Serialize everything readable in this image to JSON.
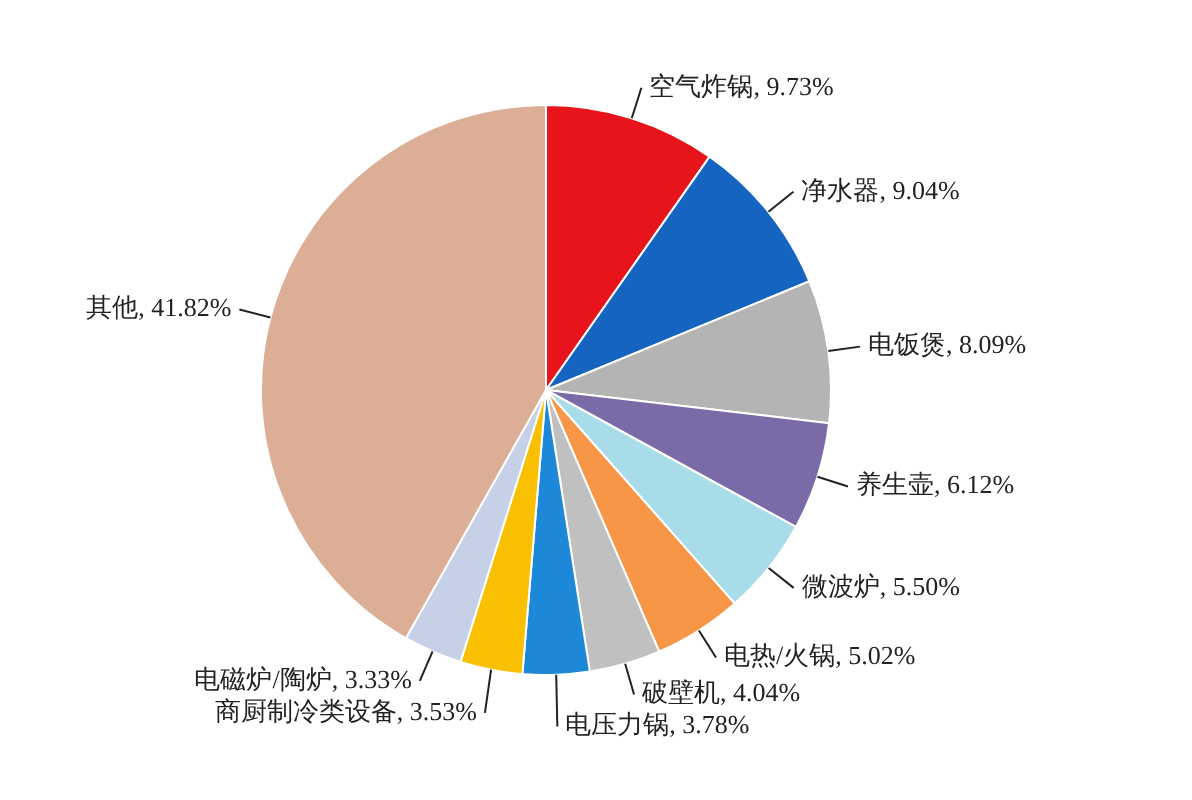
{
  "chart_data": {
    "type": "pie",
    "categories": [
      "空气炸锅",
      "净水器",
      "电饭煲",
      "养生壶",
      "微波炉",
      "电热/火锅",
      "破壁机",
      "电压力锅",
      "商厨制冷类设备",
      "电磁炉/陶炉",
      "其他"
    ],
    "values": [
      9.73,
      9.04,
      8.09,
      6.12,
      5.5,
      5.02,
      4.04,
      3.78,
      3.53,
      3.33,
      41.82
    ],
    "value_labels": [
      "9.73%",
      "9.04%",
      "8.09%",
      "6.12%",
      "5.50%",
      "5.02%",
      "4.04%",
      "3.78%",
      "3.53%",
      "3.33%",
      "41.82%"
    ],
    "colors": [
      "#e8141c",
      "#1565c0",
      "#b4b4b4",
      "#7a6aa8",
      "#a8dce8",
      "#f79646",
      "#c0c0c0",
      "#1e88d8",
      "#f8c000",
      "#c6d0e6",
      "#dcae96"
    ],
    "legend": false
  }
}
